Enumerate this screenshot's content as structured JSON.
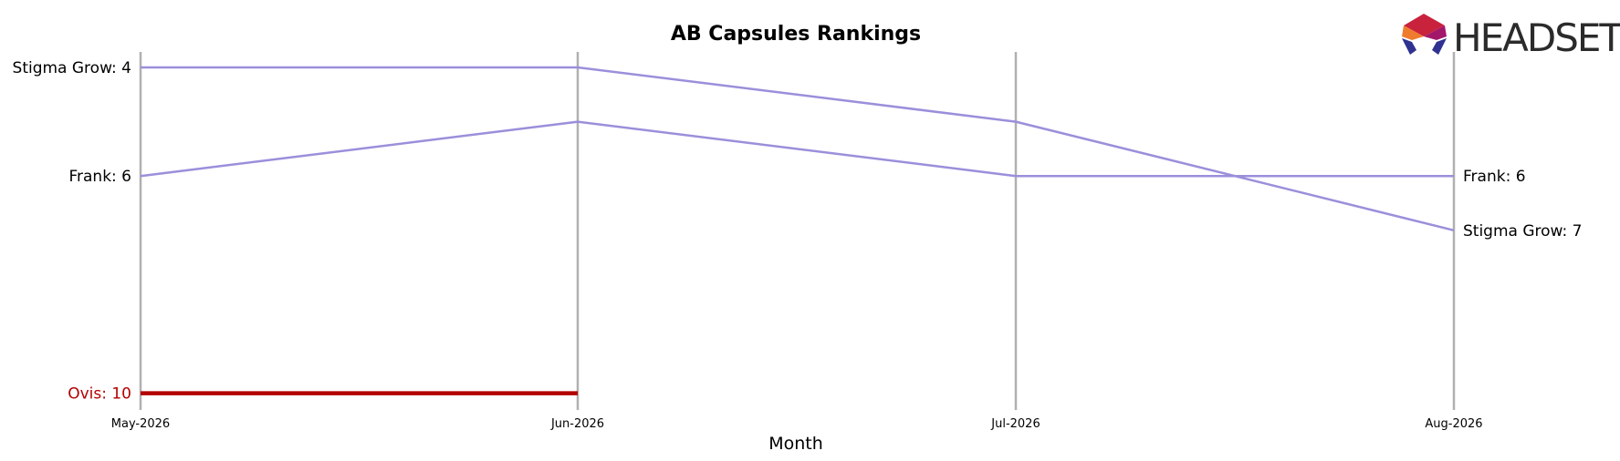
{
  "chart_data": {
    "type": "line",
    "title": "AB Capsules Rankings",
    "xlabel": "Month",
    "ylabel": "",
    "categories": [
      "May-2026",
      "Jun-2026",
      "Jul-2026",
      "Aug-2026"
    ],
    "y_inverted": true,
    "ylim": [
      10,
      4
    ],
    "grid": "vertical",
    "series": [
      {
        "name": "Stigma Grow",
        "values": [
          4,
          4,
          5,
          7
        ],
        "color": "#9b8fdb",
        "highlight": false
      },
      {
        "name": "Frank",
        "values": [
          6,
          5,
          6,
          6
        ],
        "color": "#9b8fdb",
        "highlight": false
      },
      {
        "name": "Ovis",
        "values": [
          10,
          10,
          null,
          null
        ],
        "color": "#b30000",
        "highlight": true
      }
    ],
    "left_labels": [
      {
        "text": "Stigma Grow: 4",
        "series": "Stigma Grow",
        "value": 4,
        "color": "#000000"
      },
      {
        "text": "Frank: 6",
        "series": "Frank",
        "value": 6,
        "color": "#000000"
      },
      {
        "text": "Ovis: 10",
        "series": "Ovis",
        "value": 10,
        "color": "#b30000"
      }
    ],
    "right_labels": [
      {
        "text": "Frank: 6",
        "series": "Frank",
        "value": 6,
        "color": "#000000"
      },
      {
        "text": "Stigma Grow: 7",
        "series": "Stigma Grow",
        "value": 7,
        "color": "#000000"
      }
    ]
  },
  "logo": {
    "text": "HEADSET",
    "icon": "headset-hexagon-logo"
  }
}
